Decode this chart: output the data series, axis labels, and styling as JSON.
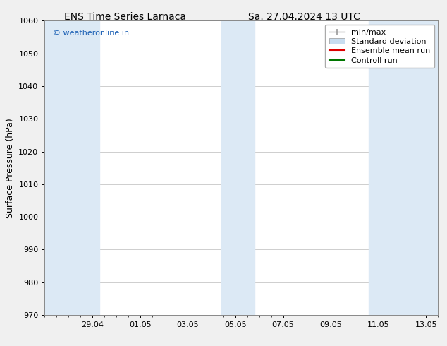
{
  "title_left": "ENS Time Series Larnaca",
  "title_right": "Sa. 27.04.2024 13 UTC",
  "ylabel": "Surface Pressure (hPa)",
  "ylim": [
    970,
    1060
  ],
  "yticks": [
    970,
    980,
    990,
    1000,
    1010,
    1020,
    1030,
    1040,
    1050,
    1060
  ],
  "xtick_labels": [
    "29.04",
    "01.05",
    "03.05",
    "05.05",
    "07.05",
    "09.05",
    "11.05",
    "13.05"
  ],
  "xtick_positions": [
    2,
    4,
    6,
    8,
    10,
    12,
    14,
    16
  ],
  "xlim": [
    0,
    16.5
  ],
  "shaded_bands": [
    {
      "x_start": 0.0,
      "x_end": 2.3
    },
    {
      "x_start": 7.4,
      "x_end": 8.8
    },
    {
      "x_start": 13.6,
      "x_end": 16.5
    }
  ],
  "shaded_color": "#dce9f5",
  "watermark": "© weatheronline.in",
  "watermark_color": "#1a5fb4",
  "bg_color": "#ffffff",
  "fig_bg_color": "#f0f0f0",
  "grid_color": "#bbbbbb",
  "legend_minmax_color": "#999999",
  "legend_std_color": "#c8ddf0",
  "legend_std_edge": "#999999",
  "legend_ensemble_color": "#dd0000",
  "legend_control_color": "#007700",
  "title_fontsize": 10,
  "tick_fontsize": 8,
  "ylabel_fontsize": 9,
  "legend_fontsize": 8
}
